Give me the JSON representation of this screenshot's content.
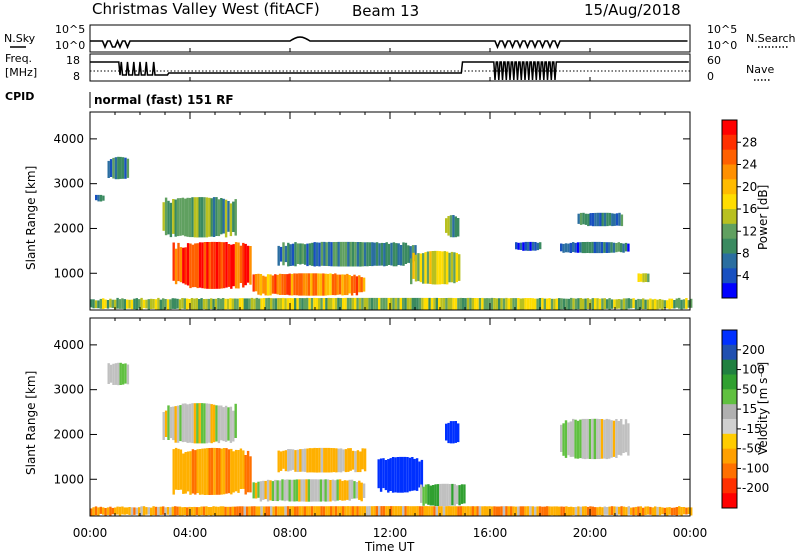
{
  "header": {
    "station": "Christmas Valley West (fitACF)",
    "beam": "Beam 13",
    "date": "15/Aug/2018"
  },
  "strip": {
    "nsky_label": "N.Sky",
    "nsearch_label": "N.Search",
    "freq_label_1": "Freq.",
    "freq_label_2": "[MHz]",
    "nave_label": "Nave",
    "cpid_label": "CPID",
    "cpid_value": "normal (fast) 151 RF",
    "noise_ticks": [
      "10^5",
      "10^0"
    ],
    "freq_ticks": [
      "18",
      "8"
    ],
    "nave_ticks": [
      "60",
      "0"
    ]
  },
  "power_scale": {
    "label": "Power [dB]",
    "ticks": [
      "28",
      "24",
      "20",
      "16",
      "12",
      "8",
      "4"
    ],
    "colors": [
      "#ff0000",
      "#ff3000",
      "#ff6000",
      "#ff9000",
      "#ffbb00",
      "#ffdd00",
      "#b8c020",
      "#60a060",
      "#3a8a60",
      "#2a6ea0",
      "#1850c0",
      "#0000ff"
    ]
  },
  "velocity_scale": {
    "label": "Velocity [m s⁻¹]",
    "ticks": [
      "200",
      "100",
      "50",
      "15",
      "-15",
      "-50",
      "-100",
      "-200"
    ],
    "colors": [
      "#0030ff",
      "#2050b0",
      "#208040",
      "#30a030",
      "#60c040",
      "#b0b0b0",
      "#d0d0d0",
      "#ffcc00",
      "#ffa000",
      "#ff7000",
      "#ff3000",
      "#ff0000"
    ]
  },
  "axes": {
    "ylabel": "Slant Range [km]",
    "xlabel": "Time UT",
    "yticks": [
      "4000",
      "3000",
      "2000",
      "1000"
    ],
    "xticks": [
      "00:00",
      "04:00",
      "08:00",
      "12:00",
      "16:00",
      "20:00",
      "00:00"
    ]
  },
  "chart_data": {
    "type": "heatmap",
    "title": "Christmas Valley West (fitACF)",
    "x_range_hours_ut": [
      0,
      24
    ],
    "y_range_km": [
      180,
      4600
    ],
    "xlabel": "Time UT",
    "ylabel": "Slant Range [km]",
    "panels": [
      {
        "name": "Power",
        "unit": "dB",
        "scale_ticks": [
          28,
          24,
          20,
          16,
          12,
          8,
          4
        ],
        "patches": [
          {
            "t0": 0.2,
            "t1": 0.5,
            "r0": 2600,
            "r1": 2750,
            "value": 8
          },
          {
            "t0": 0.7,
            "t1": 1.5,
            "r0": 3100,
            "r1": 3600,
            "value": 8
          },
          {
            "t0": 2.9,
            "t1": 5.8,
            "r0": 1800,
            "r1": 2700,
            "value": 12
          },
          {
            "t0": 3.3,
            "t1": 6.4,
            "r0": 650,
            "r1": 1700,
            "value": 26
          },
          {
            "t0": 6.5,
            "t1": 11.0,
            "r0": 500,
            "r1": 1000,
            "value": 22
          },
          {
            "t0": 7.5,
            "t1": 13.0,
            "r0": 1150,
            "r1": 1700,
            "value": 10
          },
          {
            "t0": 12.8,
            "t1": 14.8,
            "r0": 750,
            "r1": 1500,
            "value": 16
          },
          {
            "t0": 14.2,
            "t1": 14.7,
            "r0": 1800,
            "r1": 2300,
            "value": 12
          },
          {
            "t0": 17.0,
            "t1": 18.0,
            "r0": 1500,
            "r1": 1700,
            "value": 6
          },
          {
            "t0": 18.8,
            "t1": 21.5,
            "r0": 1450,
            "r1": 1700,
            "value": 8
          },
          {
            "t0": 19.5,
            "t1": 21.3,
            "r0": 2050,
            "r1": 2350,
            "value": 8
          },
          {
            "t0": 21.9,
            "t1": 22.3,
            "r0": 800,
            "r1": 1000,
            "value": 16
          },
          {
            "t0": 0.0,
            "t1": 24.0,
            "r0": 180,
            "r1": 450,
            "value": 14
          }
        ]
      },
      {
        "name": "Velocity",
        "unit": "m s-1",
        "scale_ticks": [
          200,
          100,
          50,
          15,
          -15,
          -50,
          -100,
          -200
        ],
        "patches": [
          {
            "t0": 0.7,
            "t1": 1.5,
            "r0": 3100,
            "r1": 3600,
            "value": 0
          },
          {
            "t0": 2.9,
            "t1": 5.8,
            "r0": 1800,
            "r1": 2700,
            "value": 0
          },
          {
            "t0": 3.3,
            "t1": 6.4,
            "r0": 650,
            "r1": 1700,
            "value": -45
          },
          {
            "t0": 6.5,
            "t1": 11.0,
            "r0": 500,
            "r1": 1000,
            "value": 0
          },
          {
            "t0": 7.5,
            "t1": 11.0,
            "r0": 1150,
            "r1": 1700,
            "value": -20
          },
          {
            "t0": 11.5,
            "t1": 13.3,
            "r0": 700,
            "r1": 1500,
            "value": 220
          },
          {
            "t0": 13.2,
            "t1": 15.0,
            "r0": 400,
            "r1": 900,
            "value": 30
          },
          {
            "t0": 14.2,
            "t1": 14.7,
            "r0": 1800,
            "r1": 2300,
            "value": 200
          },
          {
            "t0": 18.8,
            "t1": 21.5,
            "r0": 1450,
            "r1": 2350,
            "value": 0
          },
          {
            "t0": 0.0,
            "t1": 24.0,
            "r0": 180,
            "r1": 400,
            "value": -40
          }
        ]
      }
    ]
  }
}
